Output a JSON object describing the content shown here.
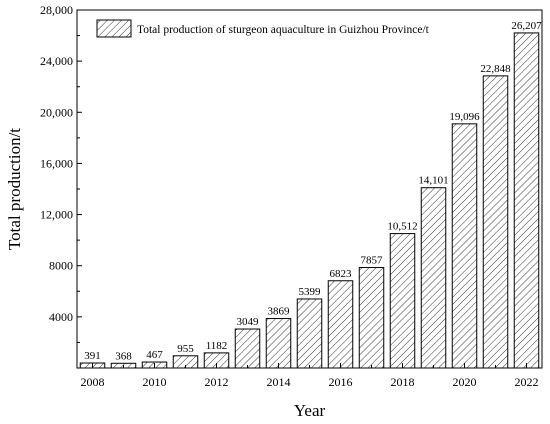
{
  "chart_data": {
    "type": "bar",
    "categories": [
      2008,
      2009,
      2010,
      2011,
      2012,
      2013,
      2014,
      2015,
      2016,
      2017,
      2018,
      2019,
      2020,
      2021,
      2022
    ],
    "series": [
      {
        "name": "Total production of sturgeon aquaculture in Guizhou Province/t",
        "values": [
          391,
          368,
          467,
          955,
          1182,
          3049,
          3869,
          5399,
          6823,
          7857,
          10512,
          14101,
          19096,
          22848,
          26207
        ]
      }
    ],
    "data_labels": [
      "391",
      "368",
      "467",
      "955",
      "1182",
      "3049",
      "3869",
      "5399",
      "6823",
      "7857",
      "10,512",
      "14,101",
      "19,096",
      "22,848",
      "26,207"
    ],
    "xlabel": "Year",
    "ylabel": "Total production/t",
    "ylim": [
      0,
      28000
    ],
    "xlim": [
      2007.5,
      2022.5
    ],
    "yticks": [
      4000,
      8000,
      12000,
      16000,
      20000,
      24000,
      28000
    ],
    "ytick_labels": [
      "4000",
      "8000",
      "12,000",
      "16,000",
      "20,000",
      "24,000",
      "28,000"
    ],
    "xticks": [
      2008,
      2010,
      2012,
      2014,
      2016,
      2018,
      2020,
      2022
    ],
    "xtick_labels": [
      "2008",
      "2010",
      "2012",
      "2014",
      "2016",
      "2018",
      "2020",
      "2022"
    ],
    "bar_fill": "hatched",
    "bar_stroke_color": "#000000",
    "grid": false,
    "legend_position": "top-left"
  }
}
